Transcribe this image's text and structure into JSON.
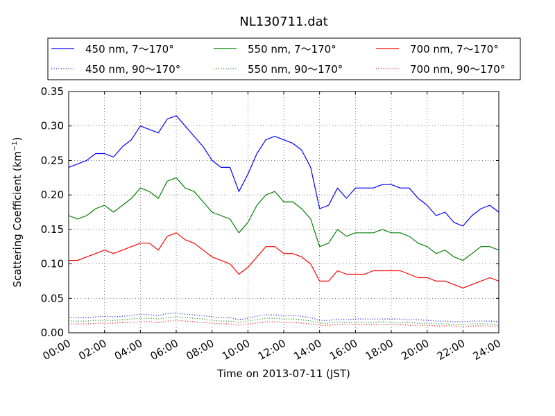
{
  "chart_data": {
    "type": "line",
    "title": "NL130711.dat",
    "xlabel": "Time on 2013-07-11 (JST)",
    "ylabel_main": "Scattering Coefficient (km",
    "ylabel_sup": "−1",
    "ylabel_close": ")",
    "xlim": [
      0,
      24
    ],
    "ylim": [
      0,
      0.35
    ],
    "grid": true,
    "legend_placement": "top, above plot, 3 columns",
    "x_ticks": [
      0,
      2,
      4,
      6,
      8,
      10,
      12,
      14,
      16,
      18,
      20,
      22,
      24
    ],
    "x_tick_labels": [
      "00:00",
      "02:00",
      "04:00",
      "06:00",
      "08:00",
      "10:00",
      "12:00",
      "14:00",
      "16:00",
      "18:00",
      "20:00",
      "22:00",
      "24:00"
    ],
    "y_ticks": [
      0,
      0.05,
      0.1,
      0.15,
      0.2,
      0.25,
      0.3,
      0.35
    ],
    "y_tick_labels": [
      "0.00",
      "0.05",
      "0.10",
      "0.15",
      "0.20",
      "0.25",
      "0.30",
      "0.35"
    ],
    "x": [
      0,
      0.5,
      1,
      1.5,
      2,
      2.5,
      3,
      3.5,
      4,
      4.5,
      5,
      5.5,
      6,
      6.5,
      7,
      7.5,
      8,
      8.5,
      9,
      9.5,
      10,
      10.5,
      11,
      11.5,
      12,
      12.5,
      13,
      13.5,
      14,
      14.5,
      15,
      15.5,
      16,
      16.5,
      17,
      17.5,
      18,
      18.5,
      19,
      19.5,
      20,
      20.5,
      21,
      21.5,
      22,
      22.5,
      23,
      23.5,
      24
    ],
    "series": [
      {
        "name": "450 nm, 7～170°",
        "color": "#0000ff",
        "style": "solid",
        "values": [
          0.24,
          0.245,
          0.25,
          0.26,
          0.26,
          0.255,
          0.27,
          0.28,
          0.3,
          0.295,
          0.29,
          0.31,
          0.315,
          0.3,
          0.285,
          0.27,
          0.25,
          0.24,
          0.24,
          0.205,
          0.23,
          0.26,
          0.28,
          0.285,
          0.28,
          0.275,
          0.265,
          0.24,
          0.18,
          0.185,
          0.21,
          0.195,
          0.21,
          0.21,
          0.21,
          0.215,
          0.215,
          0.21,
          0.21,
          0.195,
          0.185,
          0.17,
          0.175,
          0.16,
          0.155,
          0.17,
          0.18,
          0.185,
          0.175
        ]
      },
      {
        "name": "550 nm, 7～170°",
        "color": "#008000",
        "style": "solid",
        "values": [
          0.17,
          0.165,
          0.17,
          0.18,
          0.185,
          0.175,
          0.185,
          0.195,
          0.21,
          0.205,
          0.195,
          0.22,
          0.225,
          0.21,
          0.205,
          0.19,
          0.175,
          0.17,
          0.165,
          0.145,
          0.16,
          0.185,
          0.2,
          0.205,
          0.19,
          0.19,
          0.18,
          0.165,
          0.125,
          0.13,
          0.15,
          0.14,
          0.145,
          0.145,
          0.145,
          0.15,
          0.145,
          0.145,
          0.14,
          0.13,
          0.125,
          0.115,
          0.12,
          0.11,
          0.105,
          0.115,
          0.125,
          0.125,
          0.12
        ]
      },
      {
        "name": "700 nm, 7～170°",
        "color": "#ff0000",
        "style": "solid",
        "values": [
          0.105,
          0.105,
          0.11,
          0.115,
          0.12,
          0.115,
          0.12,
          0.125,
          0.13,
          0.13,
          0.12,
          0.14,
          0.145,
          0.135,
          0.13,
          0.12,
          0.11,
          0.105,
          0.1,
          0.085,
          0.095,
          0.11,
          0.125,
          0.125,
          0.115,
          0.115,
          0.11,
          0.1,
          0.075,
          0.075,
          0.09,
          0.085,
          0.085,
          0.085,
          0.09,
          0.09,
          0.09,
          0.09,
          0.085,
          0.08,
          0.08,
          0.075,
          0.075,
          0.07,
          0.065,
          0.07,
          0.075,
          0.08,
          0.075
        ]
      },
      {
        "name": "450 nm, 90～170°",
        "color": "#0000ff",
        "style": "dotted",
        "values": [
          0.022,
          0.022,
          0.022,
          0.023,
          0.024,
          0.023,
          0.024,
          0.025,
          0.027,
          0.026,
          0.025,
          0.028,
          0.029,
          0.027,
          0.026,
          0.025,
          0.023,
          0.022,
          0.022,
          0.019,
          0.021,
          0.024,
          0.026,
          0.026,
          0.025,
          0.025,
          0.024,
          0.022,
          0.018,
          0.018,
          0.02,
          0.019,
          0.02,
          0.02,
          0.02,
          0.02,
          0.02,
          0.02,
          0.019,
          0.019,
          0.018,
          0.017,
          0.017,
          0.016,
          0.016,
          0.017,
          0.017,
          0.017,
          0.016
        ]
      },
      {
        "name": "550 nm, 90～170°",
        "color": "#008000",
        "style": "dotted",
        "values": [
          0.017,
          0.017,
          0.017,
          0.018,
          0.018,
          0.018,
          0.019,
          0.02,
          0.021,
          0.021,
          0.02,
          0.022,
          0.023,
          0.022,
          0.021,
          0.02,
          0.018,
          0.017,
          0.017,
          0.015,
          0.017,
          0.019,
          0.021,
          0.021,
          0.02,
          0.02,
          0.019,
          0.017,
          0.014,
          0.014,
          0.016,
          0.015,
          0.015,
          0.015,
          0.015,
          0.016,
          0.015,
          0.015,
          0.015,
          0.014,
          0.014,
          0.013,
          0.013,
          0.012,
          0.012,
          0.013,
          0.013,
          0.013,
          0.012
        ]
      },
      {
        "name": "700 nm, 90～170°",
        "color": "#ff0000",
        "style": "dotted",
        "values": [
          0.013,
          0.013,
          0.013,
          0.014,
          0.014,
          0.014,
          0.015,
          0.015,
          0.016,
          0.016,
          0.015,
          0.017,
          0.018,
          0.017,
          0.016,
          0.015,
          0.014,
          0.013,
          0.013,
          0.011,
          0.013,
          0.014,
          0.016,
          0.016,
          0.015,
          0.015,
          0.014,
          0.013,
          0.011,
          0.011,
          0.012,
          0.012,
          0.012,
          0.012,
          0.012,
          0.012,
          0.012,
          0.012,
          0.011,
          0.011,
          0.011,
          0.01,
          0.01,
          0.01,
          0.009,
          0.01,
          0.01,
          0.01,
          0.01
        ]
      }
    ],
    "legend_order": [
      0,
      1,
      2,
      3,
      4,
      5
    ]
  }
}
